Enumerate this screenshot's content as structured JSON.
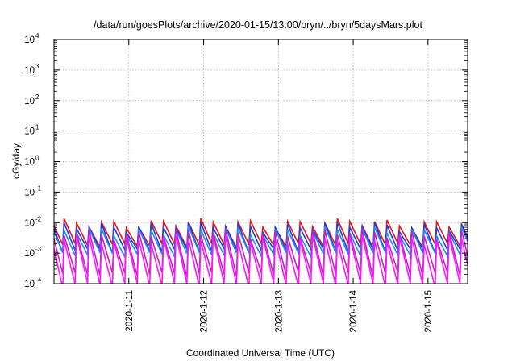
{
  "chart_data": {
    "type": "line",
    "title": "/data/run/goesPlots/archive/2020-01-15/13:00/bryn/../bryn/5daysMars.plot",
    "xlabel": "Coordinated Universal Time (UTC)",
    "ylabel": "cGy/day",
    "y_scale": "log",
    "ylim": [
      0.0001,
      10000
    ],
    "y_ticks": [
      {
        "base": "10",
        "exp": "4"
      },
      {
        "base": "10",
        "exp": "3"
      },
      {
        "base": "10",
        "exp": "2"
      },
      {
        "base": "10",
        "exp": "1"
      },
      {
        "base": "10",
        "exp": "0"
      },
      {
        "base": "10",
        "exp": "-1"
      },
      {
        "base": "10",
        "exp": "-2"
      },
      {
        "base": "10",
        "exp": "-3"
      },
      {
        "base": "10",
        "exp": "-4"
      }
    ],
    "x_range_days": [
      10.0,
      15.53
    ],
    "x_ticks": [
      {
        "label": "2020-1-11",
        "day": 11
      },
      {
        "label": "2020-1-12",
        "day": 12
      },
      {
        "label": "2020-1-13",
        "day": 13
      },
      {
        "label": "2020-1-14",
        "day": 14
      },
      {
        "label": "2020-1-15",
        "day": 15
      }
    ],
    "grid": true,
    "legend": "none",
    "sawtooth_period_days": 0.166,
    "series": [
      {
        "color": "#e8141c",
        "peak": 0.0098,
        "trough": 0.0018
      },
      {
        "color": "#1e3cdc",
        "peak": 0.0078,
        "trough": 0.0012
      },
      {
        "color": "#1e8cff",
        "peak": 0.0055,
        "trough": 0.0009
      },
      {
        "color": "#c81ec8",
        "peak": 0.0045,
        "trough": 0.0002
      },
      {
        "color": "#ff14ff",
        "peak": 0.003,
        "trough": 9e-05
      }
    ]
  }
}
